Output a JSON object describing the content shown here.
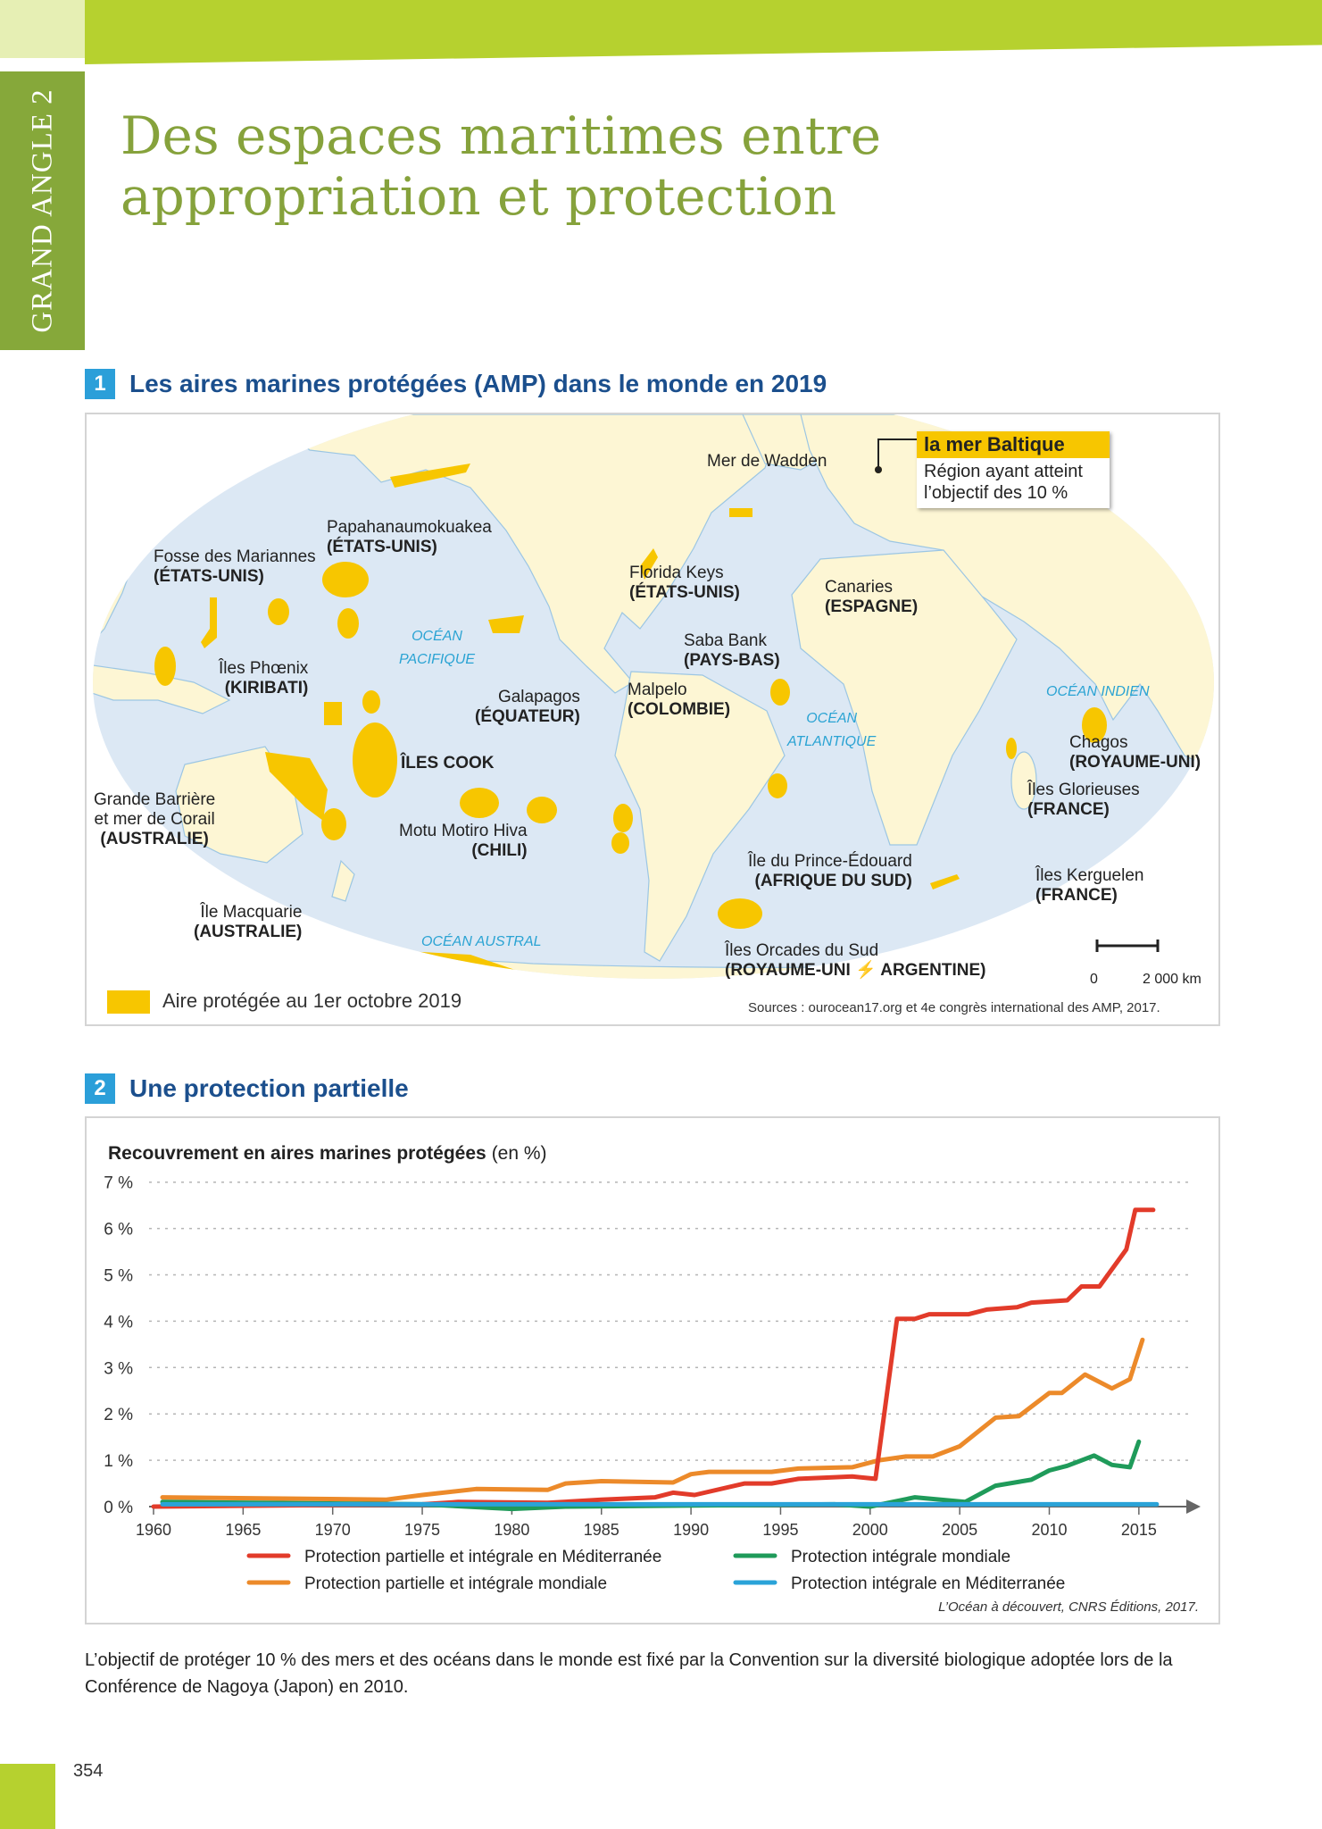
{
  "header": {
    "tab_label": "GRAND ANGLE 2",
    "title_line1": "Des espaces maritimes entre",
    "title_line2": "appropriation et protection"
  },
  "section1": {
    "number": "1",
    "title": "Les aires marines protégées (AMP) dans le monde en 2019",
    "callout": {
      "title": "la mer Baltique",
      "text1": "Région ayant atteint",
      "text2": "l’objectif des 10 %"
    },
    "labels": [
      {
        "name": "Mer de Wadden",
        "country": ""
      },
      {
        "name": "Papahanaumokuakea",
        "country": "(ÉTATS-UNIS)"
      },
      {
        "name": "Fosse des Mariannes",
        "country": "(ÉTATS-UNIS)"
      },
      {
        "name": "Florida Keys",
        "country": "(ÉTATS-UNIS)"
      },
      {
        "name": "Canaries",
        "country": "(ESPAGNE)"
      },
      {
        "name": "Saba Bank",
        "country": "(PAYS-BAS)"
      },
      {
        "name": "Îles Phœnix",
        "country": "(KIRIBATI)"
      },
      {
        "name": "Galapagos",
        "country": "(ÉQUATEUR)"
      },
      {
        "name": "Malpelo",
        "country": "(COLOMBIE)"
      },
      {
        "name": "Chagos",
        "country": "(ROYAUME-UNI)"
      },
      {
        "name": "",
        "country": "ÎLES COOK"
      },
      {
        "name": "Îles Glorieuses",
        "country": "(FRANCE)"
      },
      {
        "name": "Grande Barrière",
        "name2": "et mer de Corail",
        "country": "(AUSTRALIE)"
      },
      {
        "name": "Motu Motiro Hiva",
        "country": "(CHILI)"
      },
      {
        "name": "Île du Prince-Édouard",
        "country": "(AFRIQUE DU SUD)"
      },
      {
        "name": "Îles Kerguelen",
        "country": "(FRANCE)"
      },
      {
        "name": "Île Macquarie",
        "country": "(AUSTRALIE)"
      },
      {
        "name": "Îles Orcades du Sud",
        "country": "(ROYAUME-UNI ⚡ ARGENTINE)"
      }
    ],
    "oceans": {
      "pacific1": "OCÉAN",
      "pacific2": "PACIFIQUE",
      "atlantic1": "OCÉAN",
      "atlantic2": "ATLANTIQUE",
      "indian": "OCÉAN INDIEN",
      "southern": "OCÉAN AUSTRAL"
    },
    "scale": {
      "zero": "0",
      "distance": "2 000 km"
    },
    "legend": {
      "label": "Aire protégée au 1er octobre 2019"
    },
    "source": "Sources : ourocean17.org et 4e congrès international des AMP, 2017.",
    "colors": {
      "mpa": "#f7c600",
      "ocean": "#dce8f4",
      "land": "#fdf6d4"
    }
  },
  "section2": {
    "number": "2",
    "title": "Une protection partielle",
    "source": "L’Océan à découvert, CNRS Éditions, 2017."
  },
  "chart_data": {
    "type": "line",
    "title": "Recouvrement en aires marines protégées",
    "title_unit": "(en %)",
    "xlabel": "",
    "ylabel": "%",
    "xlim": [
      1960,
      2018
    ],
    "ylim": [
      0,
      7
    ],
    "x_ticks": [
      1960,
      1965,
      1970,
      1975,
      1980,
      1985,
      1990,
      1995,
      2000,
      2005,
      2010,
      2015
    ],
    "y_ticks": [
      0,
      1,
      2,
      3,
      4,
      5,
      6,
      7
    ],
    "y_tick_labels": [
      "0 %",
      "1 %",
      "2 %",
      "3 %",
      "4 %",
      "5 %",
      "6 %",
      "7 %"
    ],
    "grid": "horizontal dotted",
    "series": [
      {
        "name": "Protection partielle et intégrale en Méditerranée",
        "color": "#e23b2a",
        "points": [
          [
            1960,
            0
          ],
          [
            1975,
            0.05
          ],
          [
            1977,
            0.1
          ],
          [
            1982,
            0.08
          ],
          [
            1985,
            0.15
          ],
          [
            1988,
            0.2
          ],
          [
            1989,
            0.3
          ],
          [
            1990.2,
            0.25
          ],
          [
            1993,
            0.5
          ],
          [
            1994.5,
            0.5
          ],
          [
            1996,
            0.6
          ],
          [
            1999,
            0.65
          ],
          [
            2000.3,
            0.6
          ],
          [
            2001.5,
            4.05
          ],
          [
            2002.5,
            4.05
          ],
          [
            2003.3,
            4.15
          ],
          [
            2005.5,
            4.15
          ],
          [
            2006.5,
            4.25
          ],
          [
            2008.2,
            4.3
          ],
          [
            2009,
            4.4
          ],
          [
            2011,
            4.45
          ],
          [
            2011.8,
            4.75
          ],
          [
            2012.8,
            4.75
          ],
          [
            2014.3,
            5.55
          ],
          [
            2014.8,
            6.4
          ],
          [
            2015.8,
            6.4
          ]
        ]
      },
      {
        "name": "Protection partielle et intégrale mondiale",
        "color": "#ec8a2a",
        "points": [
          [
            1960.5,
            0.2
          ],
          [
            1973,
            0.15
          ],
          [
            1975,
            0.25
          ],
          [
            1978,
            0.38
          ],
          [
            1982,
            0.36
          ],
          [
            1983,
            0.5
          ],
          [
            1985,
            0.55
          ],
          [
            1989,
            0.52
          ],
          [
            1990,
            0.7
          ],
          [
            1991,
            0.75
          ],
          [
            1994.5,
            0.75
          ],
          [
            1996,
            0.82
          ],
          [
            1999,
            0.85
          ],
          [
            2000.5,
            1.0
          ],
          [
            2002,
            1.08
          ],
          [
            2003.5,
            1.08
          ],
          [
            2005,
            1.3
          ],
          [
            2007,
            1.92
          ],
          [
            2008.3,
            1.95
          ],
          [
            2010,
            2.45
          ],
          [
            2010.7,
            2.45
          ],
          [
            2012,
            2.85
          ],
          [
            2013.5,
            2.55
          ],
          [
            2014.5,
            2.75
          ],
          [
            2015.2,
            3.6
          ]
        ]
      },
      {
        "name": "Protection intégrale mondiale",
        "color": "#1f9b5a",
        "points": [
          [
            1960.5,
            0.1
          ],
          [
            1975,
            0.05
          ],
          [
            1980,
            -0.05
          ],
          [
            1983,
            0.0
          ],
          [
            1998,
            0.05
          ],
          [
            2000,
            0.0
          ],
          [
            2002.5,
            0.2
          ],
          [
            2005.3,
            0.1
          ],
          [
            2007,
            0.45
          ],
          [
            2009,
            0.58
          ],
          [
            2010,
            0.78
          ],
          [
            2011,
            0.88
          ],
          [
            2012.5,
            1.1
          ],
          [
            2013.5,
            0.9
          ],
          [
            2014.5,
            0.85
          ],
          [
            2015,
            1.4
          ]
        ]
      },
      {
        "name": "Protection intégrale en Méditerranée",
        "color": "#2aa3d8",
        "points": [
          [
            1960.5,
            0.05
          ],
          [
            2016,
            0.05
          ]
        ]
      }
    ],
    "legend_position": "bottom"
  },
  "footer": {
    "paragraph": "L’objectif de protéger 10 % des mers et des océans dans le monde est fixé par la Convention sur la diversité biologique adoptée lors de la Conférence de Nagoya (Japon) en 2010.",
    "page_number": "354"
  }
}
